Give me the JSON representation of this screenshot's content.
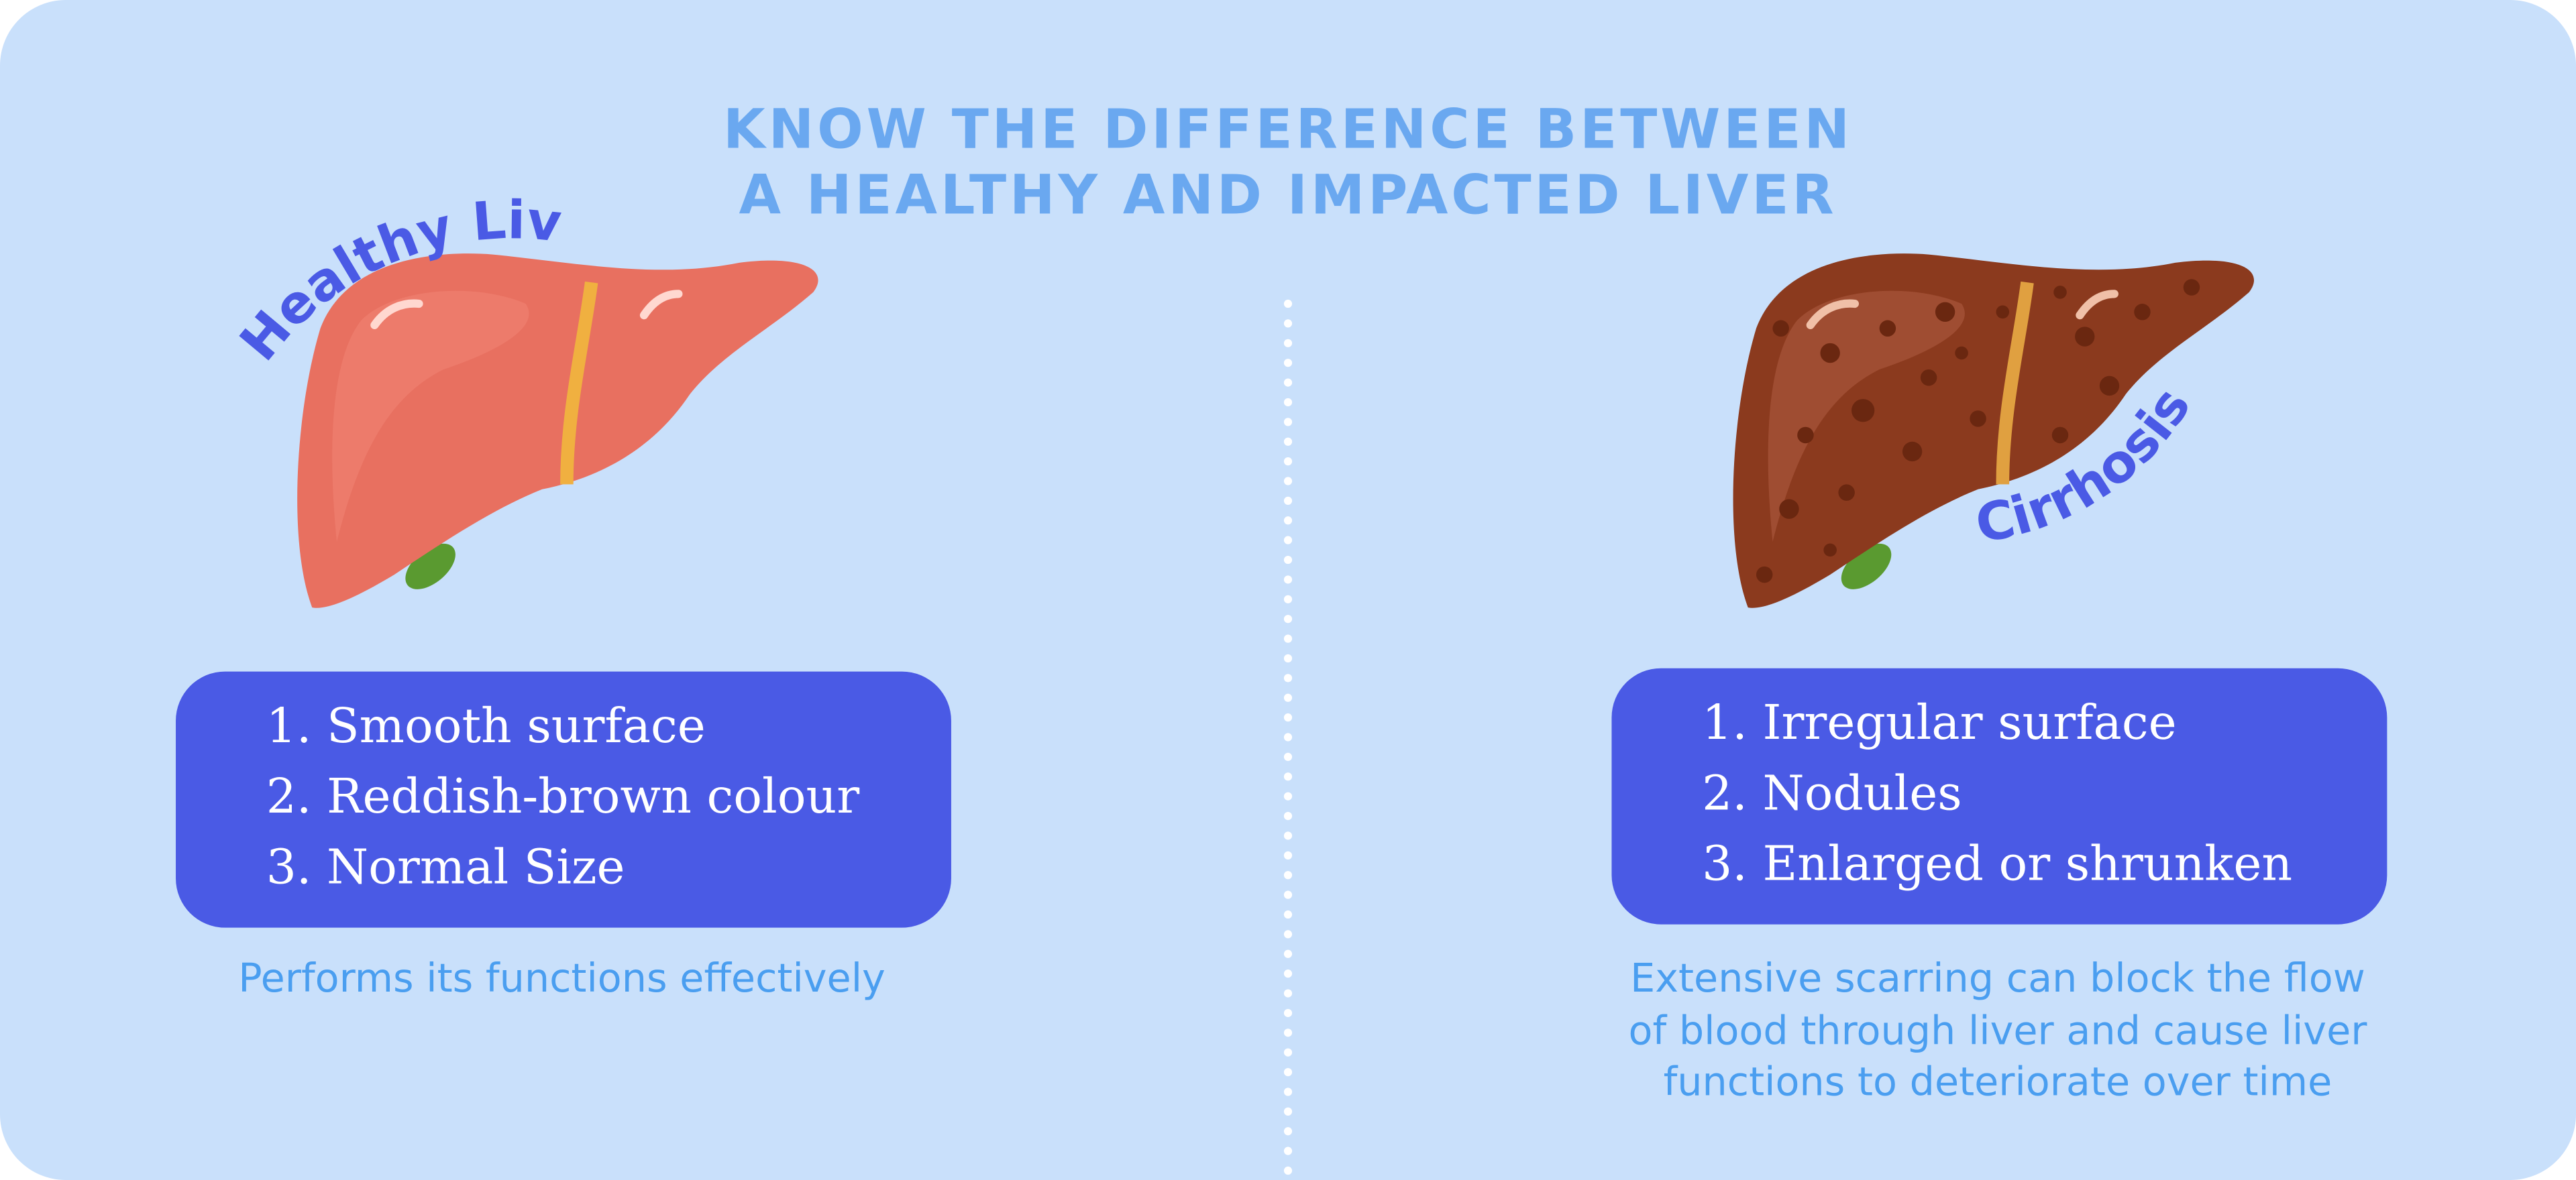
{
  "title": {
    "lines": [
      "KNOW THE DIFFERENCE BETWEEN",
      "A HEALTHY AND IMPACTED LIVER"
    ]
  },
  "healthy": {
    "label": "Healthy Liver",
    "items": [
      "1. Smooth surface",
      "2. Reddish-brown colour",
      "3. Normal Size"
    ],
    "caption": [
      "Performs its functions effectively"
    ]
  },
  "cirrhosis": {
    "label": "Cirrhosis",
    "items": [
      "1. Irregular surface",
      "2. Nodules",
      "3. Enlarged or shrunken"
    ],
    "caption": [
      "Extensive scarring can block the flow",
      "of blood through liver and cause liver",
      "functions to deteriorate over time"
    ]
  }
}
